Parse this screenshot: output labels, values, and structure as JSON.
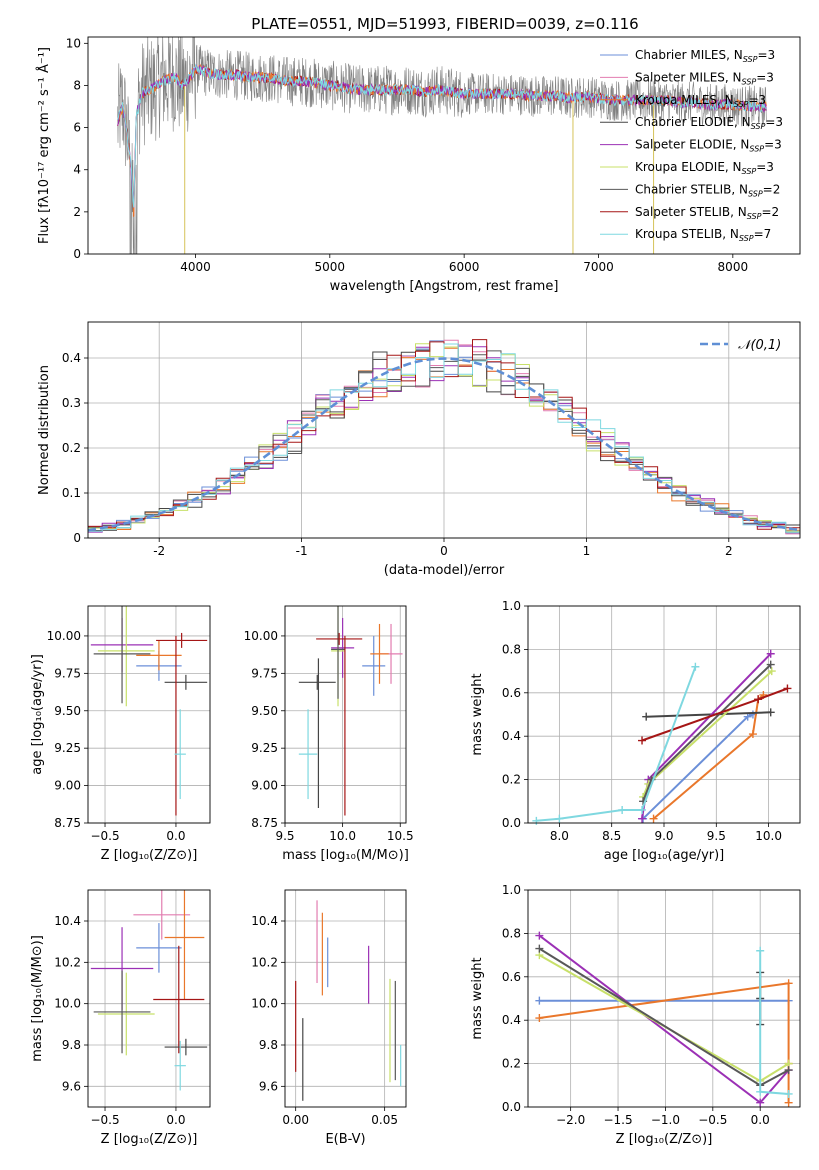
{
  "figure_title": "PLATE=0551, MJD=51993, FIBERID=0039, z=0.116",
  "model_colors": [
    "#6b8fd8",
    "#e27db0",
    "#e9772b",
    "#454545",
    "#9b30b5",
    "#c8e06a",
    "#585858",
    "#a51616",
    "#7fd8e0"
  ],
  "chart_data": [
    {
      "id": "spectrum",
      "type": "line",
      "title": "PLATE=0551, MJD=51993, FIBERID=0039, z=0.116",
      "xlabel": "wavelength [Angstrom, rest frame]",
      "ylabel": "Flux [fλ10⁻¹⁷ erg cm⁻² s⁻¹ Å⁻¹]",
      "xlim": [
        3200,
        8500
      ],
      "ylim": [
        0,
        10.3
      ],
      "xticks": [
        4000,
        5000,
        6000,
        7000,
        8000
      ],
      "yticks": [
        0,
        2,
        4,
        6,
        8,
        10
      ],
      "grid": false,
      "legend_position": "right",
      "legend": [
        {
          "name": "Chabrier MILES",
          "nssp": "3",
          "color": "#6b8fd8"
        },
        {
          "name": "Salpeter MILES",
          "nssp": "3",
          "color": "#e27db0"
        },
        {
          "name": "Kroupa MILES",
          "nssp": "3",
          "color": "#e9772b"
        },
        {
          "name": "Chabrier ELODIE",
          "nssp": "3",
          "color": "#454545"
        },
        {
          "name": "Salpeter ELODIE",
          "nssp": "3",
          "color": "#9b30b5"
        },
        {
          "name": "Kroupa ELODIE",
          "nssp": "3",
          "color": "#c8e06a"
        },
        {
          "name": "Chabrier STELIB",
          "nssp": "2",
          "color": "#585858"
        },
        {
          "name": "Salpeter STELIB",
          "nssp": "2",
          "color": "#a51616"
        },
        {
          "name": "Kroupa STELIB",
          "nssp": "7",
          "color": "#7fd8e0"
        }
      ],
      "data_series": {
        "x": [
          3420,
          3440,
          3460,
          3480,
          3500,
          3520,
          3540,
          3560,
          3600,
          3650,
          3700,
          3750,
          3800,
          3850,
          3900,
          3950,
          4000,
          4100,
          4200,
          4300,
          4400,
          4500,
          4600,
          4700,
          4800,
          4900,
          5000,
          5100,
          5200,
          5300,
          5400,
          5500,
          5600,
          5700,
          5800,
          5900,
          6000,
          6100,
          6200,
          6300,
          6400,
          6500,
          6600,
          6700,
          6800,
          6900,
          7000,
          7100,
          7200,
          7300,
          7400,
          7500,
          7600,
          7700,
          7800,
          7900,
          8000,
          8100,
          8200,
          8250
        ],
        "y": [
          6.2,
          6.8,
          7.0,
          6.2,
          5.2,
          4.2,
          2.0,
          6.6,
          7.6,
          7.8,
          7.9,
          8.2,
          8.3,
          8.4,
          8.0,
          8.3,
          8.8,
          8.6,
          8.5,
          8.5,
          8.4,
          8.4,
          8.3,
          8.2,
          8.2,
          8.1,
          8.0,
          7.9,
          7.8,
          7.8,
          7.8,
          7.8,
          7.8,
          7.7,
          7.8,
          7.7,
          7.6,
          7.6,
          7.6,
          7.6,
          7.6,
          7.5,
          7.5,
          7.5,
          7.4,
          7.5,
          7.4,
          7.3,
          7.3,
          7.3,
          7.3,
          7.3,
          7.2,
          7.2,
          7.1,
          7.1,
          7.1,
          7.0,
          7.0,
          7.0
        ]
      }
    },
    {
      "id": "residuals",
      "type": "bar",
      "xlabel": "(data-model)/error",
      "ylabel": "Normed distribution",
      "xlim": [
        -2.5,
        2.5
      ],
      "ylim": [
        0,
        0.48
      ],
      "xticks": [
        -2,
        -1,
        0,
        1,
        2
      ],
      "yticks": [
        0.0,
        0.1,
        0.2,
        0.3,
        0.4
      ],
      "grid": true,
      "legend_position": "top-right",
      "gaussian": {
        "label": "𝒩(0,1)",
        "mu": 0,
        "sigma": 1,
        "color": "#5f8fd5"
      },
      "bin_width": 0.1
    },
    {
      "id": "age-vs-Z",
      "type": "scatter",
      "xlabel": "Z [log₁₀(Z/Z⊙)]",
      "ylabel": "age  [log₁₀(age/yr)]",
      "xlim": [
        -0.62,
        0.24
      ],
      "ylim": [
        8.75,
        10.2
      ],
      "xticks": [
        -0.5,
        0.0
      ],
      "xticklabels": [
        "−0.5",
        "0.0"
      ],
      "yticks": [
        8.75,
        9.0,
        9.25,
        9.5,
        9.75,
        10.0
      ],
      "yticklabels": [
        "8.75",
        "9.00",
        "9.25",
        "9.50",
        "9.75",
        "10.00"
      ],
      "grid": true,
      "points": [
        {
          "x": -0.12,
          "y": 9.8,
          "xerr": 0.16,
          "yerr": 0.1,
          "color": "#6b8fd8"
        },
        {
          "x": -0.12,
          "y": 9.87,
          "xerr": 0.16,
          "yerr": 0.1,
          "color": "#e9772b"
        },
        {
          "x": -0.38,
          "y": 9.94,
          "xerr": 0.22,
          "yerr": 0.18,
          "color": "#9b30b5"
        },
        {
          "x": -0.35,
          "y": 9.9,
          "xerr": 0.2,
          "yerr": 0.37,
          "color": "#c8e06a"
        },
        {
          "x": -0.38,
          "y": 9.88,
          "xerr": 0.2,
          "yerr": 0.33,
          "color": "#585858"
        },
        {
          "x": 0.04,
          "y": 9.97,
          "xerr": 0.18,
          "yerr": 0.05,
          "color": "#a51616"
        },
        {
          "x": 0.07,
          "y": 9.69,
          "xerr": 0.15,
          "yerr": 0.05,
          "color": "#454545"
        },
        {
          "x": 0.0,
          "y": 9.4,
          "xerr": 0.0,
          "yerr": 0.6,
          "color": "#a51616"
        },
        {
          "x": 0.03,
          "y": 9.21,
          "xerr": 0.04,
          "yerr": 0.3,
          "color": "#7fd8e0"
        }
      ]
    },
    {
      "id": "age-vs-mass",
      "type": "scatter",
      "xlabel": "mass [log₁₀(M/M⊙)]",
      "xlim": [
        9.5,
        10.55
      ],
      "ylim": [
        8.75,
        10.2
      ],
      "xticks": [
        9.5,
        10.0,
        10.5
      ],
      "xticklabels": [
        "9.5",
        "10.0",
        "10.5"
      ],
      "yticks": [
        8.75,
        9.0,
        9.25,
        9.5,
        9.75,
        10.0
      ],
      "yticklabels": [
        "8.75",
        "9.00",
        "9.25",
        "9.50",
        "9.75",
        "10.00"
      ],
      "grid": true,
      "points": [
        {
          "x": 10.27,
          "y": 9.8,
          "xerr": 0.1,
          "yerr": 0.2,
          "color": "#6b8fd8"
        },
        {
          "x": 10.42,
          "y": 9.88,
          "xerr": 0.1,
          "yerr": 0.2,
          "color": "#e27db0"
        },
        {
          "x": 10.32,
          "y": 9.88,
          "xerr": 0.08,
          "yerr": 0.2,
          "color": "#e9772b"
        },
        {
          "x": 10.0,
          "y": 9.92,
          "xerr": 0.1,
          "yerr": 0.2,
          "color": "#9b30b5"
        },
        {
          "x": 9.96,
          "y": 9.9,
          "xerr": 0.06,
          "yerr": 0.37,
          "color": "#c8e06a"
        },
        {
          "x": 9.96,
          "y": 9.91,
          "xerr": 0.06,
          "yerr": 0.33,
          "color": "#585858"
        },
        {
          "x": 9.97,
          "y": 9.98,
          "xerr": 0.2,
          "yerr": 0.04,
          "color": "#a51616"
        },
        {
          "x": 9.78,
          "y": 9.69,
          "xerr": 0.16,
          "yerr": 0.05,
          "color": "#454545"
        },
        {
          "x": 9.79,
          "y": 9.35,
          "xerr": 0.0,
          "yerr": 0.5,
          "color": "#454545"
        },
        {
          "x": 10.02,
          "y": 9.4,
          "xerr": 0.0,
          "yerr": 0.6,
          "color": "#a51616"
        },
        {
          "x": 9.7,
          "y": 9.21,
          "xerr": 0.08,
          "yerr": 0.3,
          "color": "#7fd8e0"
        }
      ]
    },
    {
      "id": "weight-vs-age",
      "type": "line",
      "xlabel": "age  [log₁₀(age/yr)]",
      "ylabel": "mass weight",
      "xlim": [
        7.7,
        10.3
      ],
      "ylim": [
        0,
        1.0
      ],
      "xticks": [
        8.0,
        8.5,
        9.0,
        9.5,
        10.0
      ],
      "xticklabels": [
        "8.0",
        "8.5",
        "9.0",
        "9.5",
        "10.0"
      ],
      "yticks": [
        0.0,
        0.2,
        0.4,
        0.6,
        0.8,
        1.0
      ],
      "yticklabels": [
        "0.0",
        "0.2",
        "0.4",
        "0.6",
        "0.8",
        "1.0"
      ],
      "grid": true,
      "series": [
        {
          "color": "#6b8fd8",
          "points": [
            [
              8.8,
              0.02
            ],
            [
              9.8,
              0.49
            ],
            [
              9.85,
              0.5
            ]
          ]
        },
        {
          "color": "#e9772b",
          "points": [
            [
              8.9,
              0.02
            ],
            [
              9.85,
              0.41
            ],
            [
              9.9,
              0.57
            ],
            [
              9.95,
              0.59
            ]
          ]
        },
        {
          "color": "#454545",
          "points": [
            [
              8.83,
              0.49
            ],
            [
              10.02,
              0.51
            ]
          ]
        },
        {
          "color": "#9b30b5",
          "points": [
            [
              8.79,
              0.02
            ],
            [
              8.85,
              0.2
            ],
            [
              10.02,
              0.78
            ]
          ]
        },
        {
          "color": "#c8e06a",
          "points": [
            [
              8.8,
              0.12
            ],
            [
              8.85,
              0.18
            ],
            [
              10.03,
              0.7
            ]
          ]
        },
        {
          "color": "#585858",
          "points": [
            [
              8.8,
              0.1
            ],
            [
              8.88,
              0.2
            ],
            [
              10.02,
              0.73
            ]
          ]
        },
        {
          "color": "#a51616",
          "points": [
            [
              8.79,
              0.38
            ],
            [
              9.9,
              0.57
            ],
            [
              10.18,
              0.62
            ]
          ]
        },
        {
          "color": "#7fd8e0",
          "points": [
            [
              7.78,
              0.01
            ],
            [
              8.0,
              0.02
            ],
            [
              8.6,
              0.06
            ],
            [
              8.79,
              0.06
            ],
            [
              9.3,
              0.72
            ]
          ]
        }
      ]
    },
    {
      "id": "mass-vs-Z",
      "type": "scatter",
      "xlabel": "Z [log₁₀(Z/Z⊙)]",
      "ylabel": "mass [log₁₀(M/M⊙)]",
      "xlim": [
        -0.62,
        0.24
      ],
      "ylim": [
        9.5,
        10.55
      ],
      "xticks": [
        -0.5,
        0.0
      ],
      "xticklabels": [
        "−0.5",
        "0.0"
      ],
      "yticks": [
        9.6,
        9.8,
        10.0,
        10.2,
        10.4
      ],
      "yticklabels": [
        "9.6",
        "9.8",
        "10.0",
        "10.2",
        "10.4"
      ],
      "grid": true,
      "points": [
        {
          "x": -0.12,
          "y": 10.27,
          "xerr": 0.16,
          "yerr": 0.12,
          "color": "#6b8fd8"
        },
        {
          "x": -0.1,
          "y": 10.43,
          "xerr": 0.2,
          "yerr": 0.12,
          "color": "#e27db0"
        },
        {
          "x": 0.06,
          "y": 10.32,
          "xerr": 0.14,
          "yerr": 0.3,
          "color": "#e9772b"
        },
        {
          "x": -0.38,
          "y": 10.17,
          "xerr": 0.22,
          "yerr": 0.2,
          "color": "#9b30b5"
        },
        {
          "x": -0.35,
          "y": 9.95,
          "xerr": 0.2,
          "yerr": 0.2,
          "color": "#c8e06a"
        },
        {
          "x": -0.38,
          "y": 9.96,
          "xerr": 0.2,
          "yerr": 0.2,
          "color": "#585858"
        },
        {
          "x": 0.02,
          "y": 10.02,
          "xerr": 0.18,
          "yerr": 0.26,
          "color": "#a51616"
        },
        {
          "x": 0.07,
          "y": 9.79,
          "xerr": 0.15,
          "yerr": 0.04,
          "color": "#454545"
        },
        {
          "x": 0.03,
          "y": 9.7,
          "xerr": 0.04,
          "yerr": 0.12,
          "color": "#7fd8e0"
        }
      ]
    },
    {
      "id": "ebv",
      "type": "scatter",
      "xlabel": "E(B-V)",
      "xlim": [
        -0.006,
        0.062
      ],
      "ylim": [
        9.5,
        10.55
      ],
      "xticks": [
        0.0,
        0.05
      ],
      "xticklabels": [
        "0.00",
        "0.05"
      ],
      "yticks": [
        9.6,
        9.8,
        10.0,
        10.2,
        10.4
      ],
      "yticklabels": [
        "9.6",
        "9.8",
        "10.0",
        "10.2",
        "10.4"
      ],
      "grid": true,
      "points": [
        {
          "x": 0.0,
          "y": 9.89,
          "xerr": 0,
          "yerr": 0.22,
          "color": "#a51616"
        },
        {
          "x": 0.004,
          "y": 9.73,
          "xerr": 0,
          "yerr": 0.2,
          "color": "#454545"
        },
        {
          "x": 0.012,
          "y": 10.3,
          "xerr": 0,
          "yerr": 0.2,
          "color": "#e27db0"
        },
        {
          "x": 0.015,
          "y": 10.24,
          "xerr": 0,
          "yerr": 0.2,
          "color": "#e9772b"
        },
        {
          "x": 0.018,
          "y": 10.2,
          "xerr": 0,
          "yerr": 0.12,
          "color": "#6b8fd8"
        },
        {
          "x": 0.041,
          "y": 10.14,
          "xerr": 0,
          "yerr": 0.14,
          "color": "#9b30b5"
        },
        {
          "x": 0.053,
          "y": 9.87,
          "xerr": 0,
          "yerr": 0.25,
          "color": "#c8e06a"
        },
        {
          "x": 0.056,
          "y": 9.87,
          "xerr": 0,
          "yerr": 0.24,
          "color": "#585858"
        },
        {
          "x": 0.059,
          "y": 9.7,
          "xerr": 0,
          "yerr": 0.1,
          "color": "#7fd8e0"
        }
      ]
    },
    {
      "id": "weight-vs-Z",
      "type": "line",
      "xlabel": "Z [log₁₀(Z/Z⊙)]",
      "ylabel": "mass weight",
      "xlim": [
        -2.45,
        0.42
      ],
      "ylim": [
        0,
        1.0
      ],
      "xticks": [
        -2.0,
        -1.5,
        -1.0,
        -0.5,
        0.0
      ],
      "xticklabels": [
        "−2.0",
        "−1.5",
        "−1.0",
        "−0.5",
        "0.0"
      ],
      "yticks": [
        0.0,
        0.2,
        0.4,
        0.6,
        0.8,
        1.0
      ],
      "yticklabels": [
        "0.0",
        "0.2",
        "0.4",
        "0.6",
        "0.8",
        "1.0"
      ],
      "grid": true,
      "series": [
        {
          "color": "#6b8fd8",
          "points": [
            [
              -2.33,
              0.49
            ],
            [
              0.0,
              0.49
            ],
            [
              0.3,
              0.49
            ]
          ]
        },
        {
          "color": "#e9772b",
          "points": [
            [
              -2.33,
              0.41
            ],
            [
              0.3,
              0.57
            ],
            [
              0.3,
              0.2
            ],
            [
              0.3,
              0.02
            ]
          ]
        },
        {
          "color": "#454545",
          "points": [
            [
              0.0,
              0.62
            ],
            [
              0.0,
              0.5
            ],
            [
              0.0,
              0.38
            ]
          ]
        },
        {
          "color": "#9b30b5",
          "points": [
            [
              -2.33,
              0.79
            ],
            [
              0.0,
              0.02
            ],
            [
              0.3,
              0.17
            ]
          ]
        },
        {
          "color": "#c8e06a",
          "points": [
            [
              -2.33,
              0.7
            ],
            [
              0.0,
              0.12
            ],
            [
              0.3,
              0.2
            ]
          ]
        },
        {
          "color": "#585858",
          "points": [
            [
              -2.33,
              0.73
            ],
            [
              0.0,
              0.1
            ],
            [
              0.3,
              0.17
            ]
          ]
        },
        {
          "color": "#7fd8e0",
          "points": [
            [
              0.0,
              0.72
            ],
            [
              0.0,
              0.07
            ],
            [
              0.3,
              0.06
            ]
          ]
        }
      ]
    }
  ]
}
